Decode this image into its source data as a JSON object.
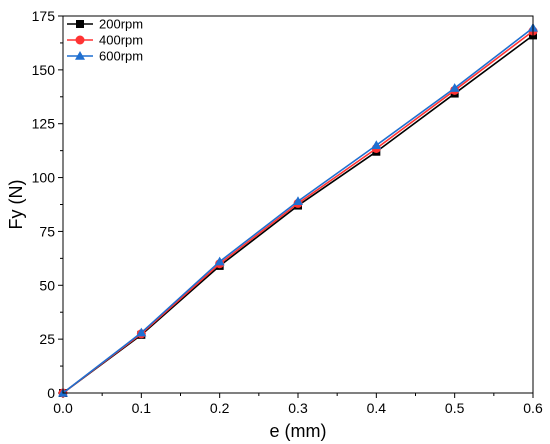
{
  "chart_data": {
    "type": "line",
    "title": "",
    "xlabel": "e (mm)",
    "ylabel": "Fy (N)",
    "xlim": [
      0.0,
      0.6
    ],
    "ylim": [
      0,
      175
    ],
    "x": [
      0.0,
      0.1,
      0.2,
      0.3,
      0.4,
      0.5,
      0.6
    ],
    "xticks": [
      "0.0",
      "0.1",
      "0.2",
      "0.3",
      "0.4",
      "0.5",
      "0.6"
    ],
    "yticks": [
      "0",
      "25",
      "50",
      "75",
      "100",
      "125",
      "150",
      "175"
    ],
    "grid": false,
    "legend_position": "top-left",
    "series": [
      {
        "name": "200rpm",
        "color": "#000000",
        "marker": "square",
        "values": [
          0,
          27,
          59,
          87,
          112,
          139,
          166
        ]
      },
      {
        "name": "400rpm",
        "color": "#ff3333",
        "marker": "circle",
        "values": [
          0,
          27.5,
          60,
          88,
          113.5,
          140.5,
          168
        ]
      },
      {
        "name": "600rpm",
        "color": "#1f6fd0",
        "marker": "triangle",
        "values": [
          0,
          28,
          61,
          89,
          115,
          141.5,
          169.5
        ]
      }
    ]
  }
}
